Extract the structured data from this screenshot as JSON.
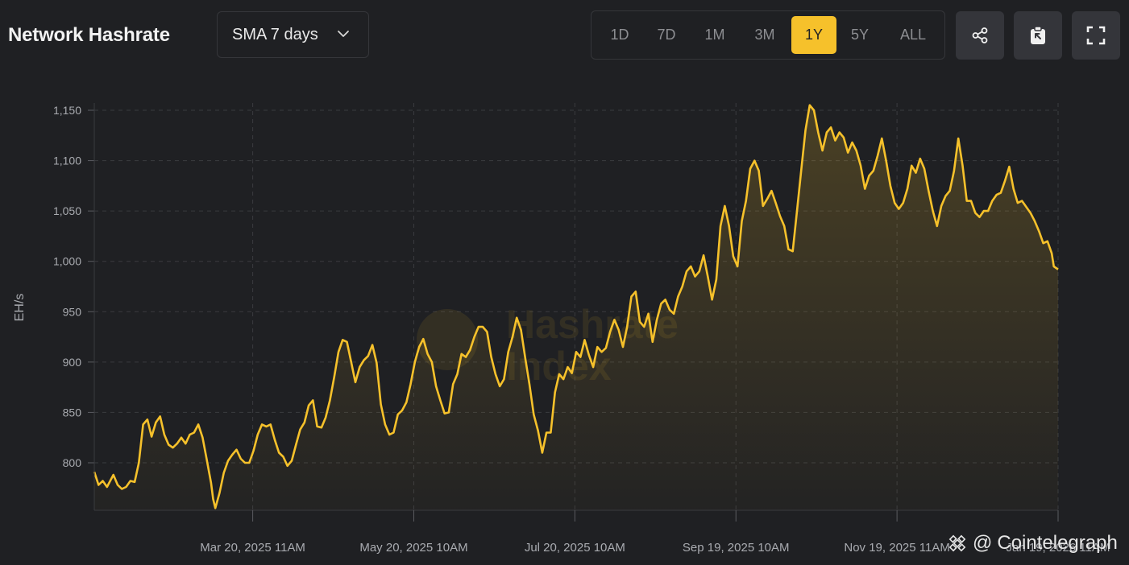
{
  "header": {
    "title": "Network Hashrate",
    "sma_select": "SMA 7 days",
    "ranges": [
      "1D",
      "7D",
      "1M",
      "3M",
      "1Y",
      "5Y",
      "ALL"
    ],
    "active_range": "1Y",
    "actions": [
      {
        "icon": "share-icon"
      },
      {
        "icon": "clipboard-icon"
      },
      {
        "icon": "fullscreen-icon"
      }
    ]
  },
  "watermark": {
    "line1": "Hashrate",
    "line2": "Index"
  },
  "credit": {
    "at": "@",
    "name": "Cointelegraph"
  },
  "colors": {
    "line": "#f6c12b",
    "background": "#1f2023",
    "grid": "#3a3b3f",
    "active_tab": "#f6c12b"
  },
  "chart_data": {
    "type": "area",
    "ylabel": "EH/s",
    "ylim": [
      752,
      1158
    ],
    "yticks": [
      800,
      850,
      900,
      950,
      1000,
      1050,
      1100,
      1150
    ],
    "ytick_labels": [
      "800",
      "850",
      "900",
      "950",
      "1,000",
      "1,050",
      "1,100",
      "1,150"
    ],
    "xticks": [
      {
        "pos": 60,
        "label": "Mar 20, 2025 11AM"
      },
      {
        "pos": 121,
        "label": "May 20, 2025 10AM"
      },
      {
        "pos": 182,
        "label": "Jul 20, 2025 10AM"
      },
      {
        "pos": 243,
        "label": "Sep 19, 2025 10AM"
      },
      {
        "pos": 304,
        "label": "Nov 19, 2025 11AM"
      },
      {
        "pos": 365,
        "label": "Jan 19, 2026 11AM"
      }
    ],
    "grid": true,
    "x_start": 0,
    "x_end": 365,
    "points": [
      [
        0,
        791
      ],
      [
        2,
        778
      ],
      [
        4,
        782
      ],
      [
        6,
        776
      ],
      [
        9,
        788
      ],
      [
        11,
        778
      ],
      [
        13,
        774
      ],
      [
        15,
        776
      ],
      [
        17,
        782
      ],
      [
        19,
        781
      ],
      [
        21,
        800
      ],
      [
        23,
        838
      ],
      [
        25,
        843
      ],
      [
        27,
        826
      ],
      [
        29,
        840
      ],
      [
        31,
        846
      ],
      [
        33,
        828
      ],
      [
        35,
        818
      ],
      [
        37,
        815
      ],
      [
        39,
        819
      ],
      [
        41,
        825
      ],
      [
        43,
        819
      ],
      [
        45,
        828
      ],
      [
        47,
        830
      ],
      [
        49,
        838
      ],
      [
        51,
        825
      ],
      [
        53,
        803
      ],
      [
        55,
        780
      ],
      [
        56,
        764
      ],
      [
        57,
        755
      ],
      [
        59,
        770
      ],
      [
        61,
        790
      ],
      [
        63,
        802
      ],
      [
        65,
        808
      ],
      [
        67,
        813
      ],
      [
        69,
        804
      ],
      [
        71,
        800
      ],
      [
        73,
        800
      ],
      [
        75,
        812
      ],
      [
        77,
        828
      ],
      [
        79,
        838
      ],
      [
        81,
        836
      ],
      [
        83,
        838
      ],
      [
        85,
        823
      ],
      [
        87,
        810
      ],
      [
        89,
        806
      ],
      [
        91,
        797
      ],
      [
        93,
        802
      ],
      [
        95,
        818
      ],
      [
        97,
        833
      ],
      [
        99,
        840
      ],
      [
        101,
        857
      ],
      [
        103,
        862
      ],
      [
        105,
        836
      ],
      [
        107,
        835
      ],
      [
        109,
        845
      ],
      [
        111,
        862
      ],
      [
        113,
        885
      ],
      [
        115,
        910
      ],
      [
        117,
        922
      ],
      [
        119,
        920
      ],
      [
        121,
        900
      ],
      [
        123,
        880
      ],
      [
        125,
        895
      ],
      [
        127,
        902
      ],
      [
        129,
        906
      ],
      [
        131,
        917
      ],
      [
        133,
        899
      ],
      [
        135,
        858
      ],
      [
        137,
        838
      ],
      [
        139,
        828
      ],
      [
        141,
        830
      ],
      [
        143,
        848
      ],
      [
        145,
        852
      ],
      [
        147,
        860
      ],
      [
        149,
        878
      ],
      [
        151,
        900
      ],
      [
        153,
        915
      ],
      [
        155,
        923
      ],
      [
        157,
        908
      ],
      [
        159,
        900
      ],
      [
        161,
        876
      ],
      [
        163,
        862
      ],
      [
        165,
        849
      ],
      [
        167,
        850
      ],
      [
        169,
        878
      ],
      [
        171,
        888
      ],
      [
        173,
        908
      ],
      [
        175,
        905
      ],
      [
        177,
        912
      ],
      [
        179,
        925
      ],
      [
        181,
        935
      ],
      [
        183,
        935
      ],
      [
        185,
        930
      ],
      [
        187,
        905
      ],
      [
        189,
        888
      ],
      [
        191,
        876
      ],
      [
        193,
        883
      ],
      [
        195,
        910
      ],
      [
        197,
        925
      ],
      [
        199,
        944
      ],
      [
        201,
        932
      ],
      [
        203,
        904
      ],
      [
        205,
        878
      ],
      [
        207,
        848
      ],
      [
        209,
        832
      ],
      [
        211,
        810
      ],
      [
        213,
        830
      ],
      [
        215,
        830
      ],
      [
        217,
        870
      ],
      [
        219,
        888
      ],
      [
        221,
        883
      ],
      [
        223,
        895
      ],
      [
        225,
        889
      ],
      [
        227,
        910
      ],
      [
        229,
        905
      ],
      [
        231,
        922
      ],
      [
        233,
        907
      ],
      [
        235,
        895
      ],
      [
        237,
        915
      ],
      [
        239,
        910
      ],
      [
        241,
        914
      ],
      [
        243,
        930
      ],
      [
        245,
        942
      ],
      [
        247,
        932
      ],
      [
        249,
        915
      ],
      [
        251,
        935
      ],
      [
        253,
        965
      ],
      [
        255,
        970
      ],
      [
        257,
        940
      ],
      [
        259,
        935
      ],
      [
        261,
        948
      ],
      [
        263,
        920
      ],
      [
        265,
        942
      ],
      [
        267,
        958
      ],
      [
        269,
        962
      ],
      [
        271,
        952
      ],
      [
        273,
        948
      ],
      [
        275,
        965
      ],
      [
        277,
        975
      ],
      [
        279,
        990
      ],
      [
        281,
        995
      ],
      [
        283,
        985
      ],
      [
        285,
        990
      ],
      [
        287,
        1006
      ],
      [
        289,
        985
      ],
      [
        291,
        962
      ],
      [
        293,
        982
      ],
      [
        295,
        1035
      ],
      [
        297,
        1055
      ],
      [
        299,
        1035
      ],
      [
        301,
        1005
      ],
      [
        303,
        995
      ],
      [
        305,
        1040
      ],
      [
        307,
        1060
      ],
      [
        309,
        1092
      ],
      [
        311,
        1100
      ],
      [
        313,
        1090
      ],
      [
        315,
        1055
      ],
      [
        317,
        1062
      ],
      [
        319,
        1070
      ],
      [
        321,
        1058
      ],
      [
        323,
        1045
      ],
      [
        325,
        1035
      ],
      [
        327,
        1012
      ],
      [
        329,
        1010
      ],
      [
        331,
        1050
      ],
      [
        333,
        1090
      ],
      [
        335,
        1130
      ],
      [
        337,
        1155
      ],
      [
        339,
        1150
      ],
      [
        341,
        1128
      ],
      [
        343,
        1110
      ],
      [
        345,
        1128
      ],
      [
        347,
        1133
      ],
      [
        349,
        1120
      ],
      [
        351,
        1128
      ],
      [
        353,
        1123
      ],
      [
        355,
        1108
      ],
      [
        357,
        1118
      ],
      [
        359,
        1110
      ],
      [
        361,
        1095
      ],
      [
        363,
        1072
      ],
      [
        365,
        1085
      ],
      [
        367,
        1090
      ],
      [
        369,
        1105
      ],
      [
        371,
        1122
      ],
      [
        373,
        1100
      ],
      [
        375,
        1075
      ],
      [
        377,
        1058
      ],
      [
        379,
        1052
      ],
      [
        381,
        1058
      ],
      [
        383,
        1072
      ],
      [
        385,
        1095
      ],
      [
        387,
        1088
      ],
      [
        389,
        1102
      ],
      [
        391,
        1092
      ],
      [
        393,
        1070
      ],
      [
        395,
        1050
      ],
      [
        397,
        1035
      ],
      [
        399,
        1055
      ],
      [
        401,
        1065
      ],
      [
        403,
        1070
      ],
      [
        405,
        1090
      ],
      [
        407,
        1122
      ],
      [
        409,
        1095
      ],
      [
        411,
        1060
      ],
      [
        413,
        1060
      ],
      [
        415,
        1048
      ],
      [
        417,
        1044
      ],
      [
        419,
        1050
      ],
      [
        421,
        1050
      ],
      [
        423,
        1060
      ],
      [
        425,
        1066
      ],
      [
        427,
        1068
      ],
      [
        429,
        1080
      ],
      [
        431,
        1094
      ],
      [
        433,
        1072
      ],
      [
        435,
        1058
      ],
      [
        437,
        1060
      ],
      [
        439,
        1054
      ],
      [
        441,
        1048
      ],
      [
        443,
        1040
      ],
      [
        445,
        1030
      ],
      [
        447,
        1018
      ],
      [
        449,
        1020
      ],
      [
        451,
        1008
      ],
      [
        452,
        995
      ],
      [
        454,
        992
      ]
    ]
  }
}
